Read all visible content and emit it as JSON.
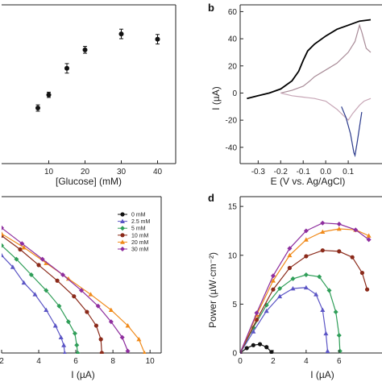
{
  "chart_data": [
    {
      "panel": "a",
      "type": "scatter",
      "xlabel": "[Glucose] (mM)",
      "ylabel": "",
      "xlim": [
        -3,
        45
      ],
      "ylim": [
        40,
        100
      ],
      "xticks": [
        "10",
        "20",
        "30",
        "40"
      ],
      "series": [
        {
          "x": [
            7,
            10,
            15,
            20,
            30,
            40
          ],
          "y": [
            61,
            66,
            76,
            83,
            89,
            87
          ],
          "err": [
            1.2,
            1.0,
            1.8,
            1.3,
            1.8,
            1.8
          ],
          "color": "#111111"
        }
      ]
    },
    {
      "panel": "b",
      "type": "line",
      "label": "b",
      "xlabel": "E (V vs. Ag/AgCl)",
      "ylabel": "I (µA)",
      "xlim": [
        -0.38,
        0.25
      ],
      "ylim": [
        -52,
        65
      ],
      "xticks": [
        "-0.3",
        "-0.2",
        "-0.1",
        "0.0",
        "0.1"
      ],
      "yticks": [
        "-40",
        "-20",
        "0",
        "20",
        "40",
        "60"
      ],
      "series": [
        {
          "color": "#000000",
          "x": [
            -0.35,
            -0.3,
            -0.25,
            -0.2,
            -0.15,
            -0.12,
            -0.1,
            -0.08,
            -0.05,
            0.0,
            0.05,
            0.1,
            0.15,
            0.2
          ],
          "y": [
            -4,
            -2,
            0,
            3,
            9,
            16,
            24,
            31,
            36,
            42,
            47,
            50,
            53,
            54
          ]
        },
        {
          "color": "#a88b97",
          "x": [
            -0.2,
            -0.15,
            -0.1,
            -0.07,
            -0.05,
            0.0,
            0.05,
            0.1,
            0.13,
            0.15,
            0.16,
            0.18,
            0.2
          ],
          "y": [
            0,
            2,
            5,
            9,
            12,
            17,
            22,
            30,
            38,
            50,
            45,
            33,
            30
          ]
        },
        {
          "color": "#c7a6b6",
          "x": [
            0.2,
            0.17,
            0.15,
            0.12,
            0.1,
            0.05,
            0.0,
            -0.05,
            -0.1,
            -0.15,
            -0.2
          ],
          "y": [
            -4,
            -6,
            -9,
            -15,
            -20,
            -12,
            -6,
            -4,
            -3,
            -2,
            0
          ]
        },
        {
          "color": "#2b3a8c",
          "x": [
            0.07,
            0.09,
            0.11,
            0.125,
            0.13,
            0.14,
            0.16
          ],
          "y": [
            -10,
            -18,
            -30,
            -44,
            -46,
            -36,
            -14
          ]
        }
      ]
    },
    {
      "panel": "c",
      "type": "line",
      "xlabel": "I (µA)",
      "ylabel": "",
      "xlim": [
        2,
        10.6
      ],
      "ylim": [
        0,
        0.4
      ],
      "xticks": [
        "2",
        "4",
        "6",
        "8",
        "10"
      ],
      "legend": {
        "placement": "top-right"
      },
      "series": [
        {
          "name": "0 mM",
          "color": "#111111",
          "marker": "circle",
          "x": [],
          "y": []
        },
        {
          "name": "2.5 mM",
          "color": "#5b55c5",
          "marker": "triangle",
          "x": [
            2.0,
            2.6,
            3.2,
            3.8,
            4.4,
            4.9,
            5.2,
            5.35,
            5.4
          ],
          "y": [
            0.25,
            0.22,
            0.18,
            0.15,
            0.11,
            0.07,
            0.04,
            0.02,
            0.0
          ]
        },
        {
          "name": "5 mM",
          "color": "#2f9e58",
          "marker": "diamond",
          "x": [
            2.0,
            2.8,
            3.6,
            4.4,
            5.1,
            5.6,
            5.95,
            6.05,
            6.1
          ],
          "y": [
            0.275,
            0.24,
            0.2,
            0.16,
            0.12,
            0.08,
            0.05,
            0.02,
            0.0
          ]
        },
        {
          "name": "10 mM",
          "color": "#8b2a1a",
          "marker": "circle",
          "x": [
            2.0,
            3.0,
            4.0,
            5.0,
            5.9,
            6.6,
            7.1,
            7.35,
            7.4
          ],
          "y": [
            0.3,
            0.265,
            0.225,
            0.185,
            0.145,
            0.105,
            0.07,
            0.035,
            0.0
          ]
        },
        {
          "name": "20 mM",
          "color": "#f08a1a",
          "marker": "triangle",
          "x": [
            2.0,
            3.2,
            4.4,
            5.6,
            6.8,
            7.9,
            8.8,
            9.4,
            9.7
          ],
          "y": [
            0.305,
            0.27,
            0.23,
            0.19,
            0.15,
            0.11,
            0.07,
            0.035,
            0.0
          ]
        },
        {
          "name": "30 mM",
          "color": "#8e2e9e",
          "marker": "diamond",
          "x": [
            2.0,
            3.1,
            4.2,
            5.3,
            6.3,
            7.2,
            7.9,
            8.5,
            8.8
          ],
          "y": [
            0.32,
            0.28,
            0.24,
            0.2,
            0.16,
            0.12,
            0.08,
            0.04,
            0.005
          ]
        }
      ]
    },
    {
      "panel": "d",
      "type": "line",
      "label": "d",
      "xlabel": "I (µA)",
      "ylabel": "Power (µW·cm⁻²)",
      "xlim": [
        0,
        8.6
      ],
      "ylim": [
        0,
        16
      ],
      "xticks": [
        "0",
        "2",
        "4",
        "6"
      ],
      "yticks": [
        "0",
        "5",
        "10",
        "15"
      ],
      "series": [
        {
          "color": "#111111",
          "marker": "circle",
          "x": [
            0,
            0.4,
            0.8,
            1.2,
            1.6,
            1.9
          ],
          "y": [
            0,
            0.5,
            0.8,
            0.9,
            0.6,
            0.1
          ]
        },
        {
          "color": "#5b55c5",
          "marker": "triangle",
          "x": [
            0,
            0.8,
            1.6,
            2.4,
            3.2,
            4.0,
            4.6,
            5.0,
            5.2,
            5.3
          ],
          "y": [
            0,
            2.2,
            4.3,
            5.8,
            6.6,
            6.7,
            6.0,
            4.4,
            2.0,
            0.2
          ]
        },
        {
          "color": "#2f9e58",
          "marker": "diamond",
          "x": [
            0,
            0.8,
            1.6,
            2.4,
            3.2,
            4.0,
            4.8,
            5.4,
            5.8,
            6.0,
            6.05
          ],
          "y": [
            0,
            2.6,
            4.9,
            6.6,
            7.6,
            8.0,
            7.8,
            6.4,
            4.2,
            1.8,
            0.2
          ]
        },
        {
          "color": "#8b2a1a",
          "marker": "circle",
          "x": [
            0,
            1.0,
            2.0,
            3.0,
            4.0,
            5.0,
            6.0,
            6.8,
            7.4,
            7.7
          ],
          "y": [
            0,
            3.4,
            6.5,
            8.7,
            9.9,
            10.5,
            10.4,
            9.8,
            8.2,
            6.5
          ]
        },
        {
          "color": "#f08a1a",
          "marker": "triangle",
          "x": [
            0,
            1.0,
            2.0,
            3.0,
            4.0,
            5.0,
            6.0,
            7.0,
            7.8
          ],
          "y": [
            0,
            3.9,
            7.4,
            10.0,
            11.6,
            12.4,
            12.7,
            12.6,
            12.0
          ]
        },
        {
          "color": "#8e2e9e",
          "marker": "diamond",
          "x": [
            0,
            1.0,
            2.0,
            3.0,
            4.0,
            5.0,
            6.0,
            7.0,
            7.8
          ],
          "y": [
            0,
            4.1,
            7.9,
            10.7,
            12.5,
            13.3,
            13.2,
            12.6,
            11.6
          ]
        }
      ]
    }
  ]
}
